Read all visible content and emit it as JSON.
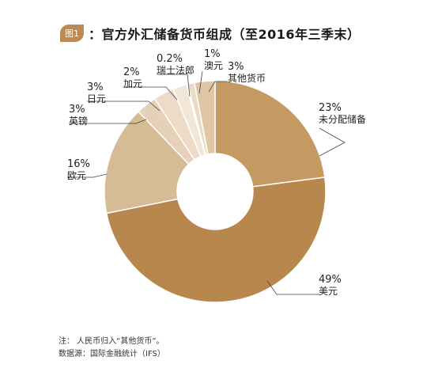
{
  "header": {
    "badge": "图1",
    "title": "图1：官方外汇储备货币组成（至2016年三季末）"
  },
  "colors": {
    "accent": "#bc8a52",
    "leader": "#444444",
    "slices": [
      "#c49a62",
      "#b8874e",
      "#d6bb97",
      "#e4d1b8",
      "#ecdcc7",
      "#f2e7d7",
      "#f5eee2",
      "#eadbc4",
      "#dfc6a5"
    ]
  },
  "chart_data": {
    "type": "pie",
    "donut": true,
    "title": "图1：官方外汇储备货币组成（至2016年三季末）",
    "slices": [
      {
        "label": "未分配储备",
        "value": 23,
        "value_label": "23%"
      },
      {
        "label": "美元",
        "value": 49,
        "value_label": "49%"
      },
      {
        "label": "欧元",
        "value": 16,
        "value_label": "16%"
      },
      {
        "label": "英镑",
        "value": 3,
        "value_label": "3%"
      },
      {
        "label": "日元",
        "value": 3,
        "value_label": "3%"
      },
      {
        "label": "加元",
        "value": 2,
        "value_label": "2%"
      },
      {
        "label": "瑞士法郎",
        "value": 0.2,
        "value_label": "0.2%"
      },
      {
        "label": "澳元",
        "value": 1,
        "value_label": "1%"
      },
      {
        "label": "其他货币",
        "value": 3,
        "value_label": "3%"
      }
    ]
  },
  "notes": {
    "note": "注：  人民币归入“其他货币”。",
    "source": "数据源：国际金融统计（IFS）"
  }
}
